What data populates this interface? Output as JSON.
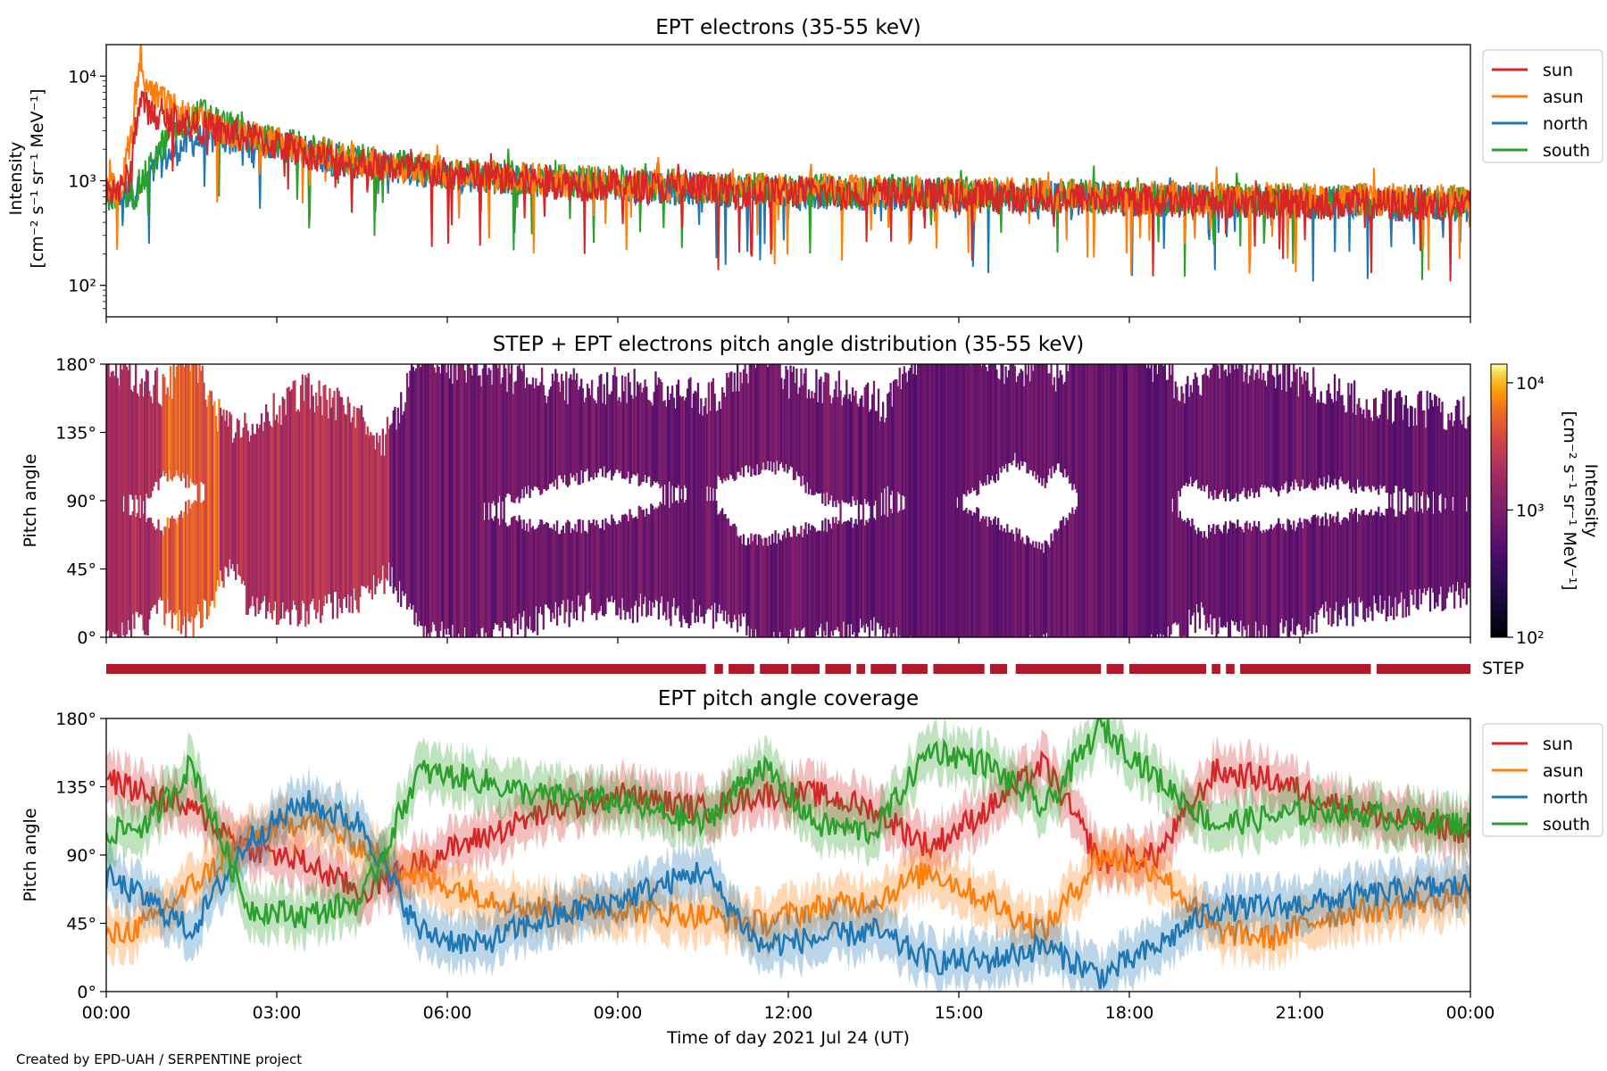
{
  "footer": {
    "credit": "Created by EPD-UAH / SERPENTINE project"
  },
  "colors": {
    "sun": "#d62728",
    "asun": "#ff7f0e",
    "north": "#1f77b4",
    "south": "#2ca02c",
    "step_bar": "#b2182b"
  },
  "chart_data": [
    {
      "type": "line",
      "title": "EPT electrons (35-55 keV)",
      "ylabel": "Intensity",
      "yunit": "[cm⁻² s⁻¹ sr⁻¹ MeV⁻¹]",
      "yscale": "log",
      "ylim": [
        50,
        20000
      ],
      "yticks": [
        "10²",
        "10³",
        "10⁴"
      ],
      "xlim": [
        "00:00",
        "24:00"
      ],
      "legend": "outside-right",
      "series": [
        {
          "name": "sun",
          "color": "#d62728",
          "x": [
            0.0,
            0.25,
            0.4,
            0.45,
            0.6,
            0.75,
            1.0,
            1.25,
            1.5,
            2.0,
            2.5,
            3.0,
            4.0,
            5.0,
            6.0,
            7.0,
            8.0,
            9.0,
            10.0,
            11.0,
            12.0,
            13.0,
            14.0,
            15.0,
            16.0,
            17.0,
            18.0,
            19.0,
            20.0,
            21.0,
            22.0,
            23.0,
            24.0
          ],
          "values": [
            900,
            800,
            1100,
            1300,
            6000,
            4500,
            3600,
            4000,
            3400,
            3000,
            2600,
            2200,
            1600,
            1350,
            1150,
            1050,
            950,
            900,
            850,
            800,
            780,
            760,
            740,
            720,
            700,
            680,
            660,
            640,
            620,
            610,
            600,
            590,
            580
          ]
        },
        {
          "name": "asun",
          "color": "#ff7f0e",
          "x": [
            0.0,
            0.3,
            0.45,
            0.55,
            0.6,
            0.75,
            1.0,
            1.25,
            1.5,
            2.0,
            2.5,
            3.0,
            4.0,
            5.0,
            6.0,
            7.0,
            8.0,
            9.0,
            10.0,
            11.0,
            12.0,
            13.0,
            14.0,
            15.0,
            16.0,
            17.0,
            18.0,
            19.0,
            20.0,
            21.0,
            22.0,
            23.0,
            24.0
          ],
          "values": [
            800,
            900,
            3000,
            9000,
            13000,
            7000,
            5500,
            4500,
            3800,
            3000,
            2600,
            2300,
            1700,
            1400,
            1200,
            1100,
            1000,
            950,
            900,
            850,
            820,
            800,
            780,
            760,
            740,
            720,
            700,
            690,
            680,
            670,
            660,
            650,
            640
          ]
        },
        {
          "name": "north",
          "color": "#1f77b4",
          "x": [
            0.0,
            0.5,
            0.75,
            1.0,
            1.25,
            1.5,
            2.0,
            2.5,
            3.0,
            4.0,
            5.0,
            6.0,
            7.0,
            8.0,
            9.0,
            10.0,
            11.0,
            12.0,
            13.0,
            14.0,
            15.0,
            16.0,
            17.0,
            18.0,
            19.0,
            20.0,
            21.0,
            22.0,
            23.0,
            24.0
          ],
          "values": [
            700,
            800,
            1000,
            1600,
            2000,
            2400,
            2600,
            2400,
            2200,
            1600,
            1350,
            1150,
            1050,
            950,
            900,
            850,
            800,
            780,
            760,
            740,
            720,
            700,
            680,
            660,
            640,
            620,
            610,
            600,
            590,
            580
          ]
        },
        {
          "name": "south",
          "color": "#2ca02c",
          "x": [
            0.0,
            0.5,
            0.75,
            1.0,
            1.5,
            1.75,
            2.0,
            2.5,
            3.0,
            4.0,
            5.0,
            6.0,
            7.0,
            8.0,
            9.0,
            10.0,
            11.0,
            12.0,
            13.0,
            14.0,
            15.0,
            16.0,
            17.0,
            18.0,
            19.0,
            20.0,
            21.0,
            22.0,
            23.0,
            24.0
          ],
          "values": [
            700,
            750,
            1200,
            2200,
            3800,
            4500,
            3500,
            2700,
            2300,
            1700,
            1400,
            1200,
            1100,
            1000,
            950,
            900,
            850,
            820,
            800,
            780,
            760,
            740,
            720,
            700,
            680,
            660,
            650,
            640,
            630,
            620
          ]
        }
      ]
    },
    {
      "type": "heatmap",
      "title": "STEP + EPT electrons pitch angle distribution (35-55 keV)",
      "ylabel": "Pitch angle",
      "ylim": [
        0,
        180
      ],
      "yticks": [
        "0°",
        "45°",
        "90°",
        "135°",
        "180°"
      ],
      "colorbar": {
        "label": "Intensity",
        "unit": "[cm⁻² s⁻¹ sr⁻¹ MeV⁻¹]",
        "scale": "log",
        "range": [
          100,
          14000
        ],
        "ticks": [
          "10²",
          "10³",
          "10⁴"
        ],
        "colormap": "inferno"
      },
      "band_intensity": [
        {
          "x_from": 0,
          "x_to": 1,
          "value": 2000
        },
        {
          "x_from": 1,
          "x_to": 2,
          "value": 5000
        },
        {
          "x_from": 2,
          "x_to": 5,
          "value": 2200
        },
        {
          "x_from": 5,
          "x_to": 13,
          "value": 800
        },
        {
          "x_from": 13,
          "x_to": 24,
          "value": 700
        }
      ]
    },
    {
      "type": "bar",
      "label": "STEP",
      "coverage_hours": [
        [
          0.0,
          10.55
        ],
        [
          10.7,
          10.85
        ],
        [
          10.95,
          11.4
        ],
        [
          11.5,
          12.0
        ],
        [
          12.05,
          12.55
        ],
        [
          12.65,
          13.1
        ],
        [
          13.2,
          13.35
        ],
        [
          13.45,
          13.9
        ],
        [
          14.0,
          14.45
        ],
        [
          14.55,
          15.45
        ],
        [
          15.55,
          15.85
        ],
        [
          16.0,
          17.5
        ],
        [
          17.6,
          17.9
        ],
        [
          18.0,
          19.35
        ],
        [
          19.45,
          19.6
        ],
        [
          19.7,
          19.85
        ],
        [
          19.95,
          22.25
        ],
        [
          22.35,
          24.0
        ]
      ]
    },
    {
      "type": "area",
      "title": "EPT pitch angle coverage",
      "ylabel": "Pitch angle",
      "xlabel": "Time of day 2021 Jul 24 (UT)",
      "xticks": [
        "00:00",
        "03:00",
        "06:00",
        "09:00",
        "12:00",
        "15:00",
        "18:00",
        "21:00",
        "00:00"
      ],
      "ylim": [
        0,
        180
      ],
      "yticks": [
        "0°",
        "45°",
        "90°",
        "135°",
        "180°"
      ],
      "legend": "outside-right",
      "series": [
        {
          "name": "sun",
          "color": "#d62728",
          "x": [
            0,
            0.75,
            1.5,
            2.5,
            3.5,
            4.5,
            5.5,
            6.5,
            7.5,
            9,
            10.5,
            11.5,
            12.5,
            13.5,
            14.5,
            15.5,
            16.5,
            17.5,
            18.5,
            19.5,
            20.5,
            21.5,
            22.5,
            24
          ],
          "values": [
            140,
            130,
            120,
            95,
            85,
            65,
            85,
            100,
            115,
            130,
            120,
            130,
            130,
            120,
            95,
            120,
            150,
            85,
            90,
            145,
            140,
            125,
            115,
            105
          ]
        },
        {
          "name": "asun",
          "color": "#ff7f0e",
          "x": [
            0,
            0.75,
            1.5,
            2.5,
            3.5,
            4.5,
            5.5,
            6.5,
            7.5,
            9,
            10.5,
            11.5,
            12.5,
            13.5,
            14.5,
            15.5,
            16.5,
            17.5,
            18.5,
            19.5,
            20.5,
            21.5,
            22.5,
            24
          ],
          "values": [
            35,
            45,
            70,
            100,
            115,
            95,
            75,
            65,
            55,
            55,
            50,
            45,
            55,
            60,
            80,
            60,
            40,
            90,
            80,
            40,
            35,
            50,
            55,
            65
          ]
        },
        {
          "name": "north",
          "color": "#1f77b4",
          "x": [
            0,
            0.75,
            1.5,
            2.5,
            3.5,
            4.5,
            5.5,
            6.5,
            7.5,
            9,
            10.5,
            11.5,
            12.5,
            13.5,
            14.5,
            15.5,
            16.5,
            17.5,
            18.5,
            19.5,
            20.5,
            21.5,
            22.5,
            24
          ],
          "values": [
            75,
            60,
            40,
            100,
            125,
            110,
            40,
            30,
            45,
            60,
            80,
            30,
            35,
            40,
            20,
            20,
            30,
            10,
            30,
            55,
            55,
            60,
            65,
            70
          ]
        },
        {
          "name": "south",
          "color": "#2ca02c",
          "x": [
            0,
            0.75,
            1.5,
            2.5,
            3.5,
            4.5,
            5.5,
            6.5,
            7.5,
            9,
            10.5,
            11.5,
            12.5,
            13.5,
            14.5,
            15.5,
            16.5,
            17.5,
            18.5,
            19.5,
            20.5,
            21.5,
            22.5,
            24
          ],
          "values": [
            105,
            110,
            150,
            55,
            50,
            60,
            145,
            140,
            130,
            125,
            110,
            150,
            110,
            105,
            160,
            150,
            120,
            175,
            140,
            110,
            115,
            120,
            115,
            110
          ]
        }
      ]
    }
  ]
}
